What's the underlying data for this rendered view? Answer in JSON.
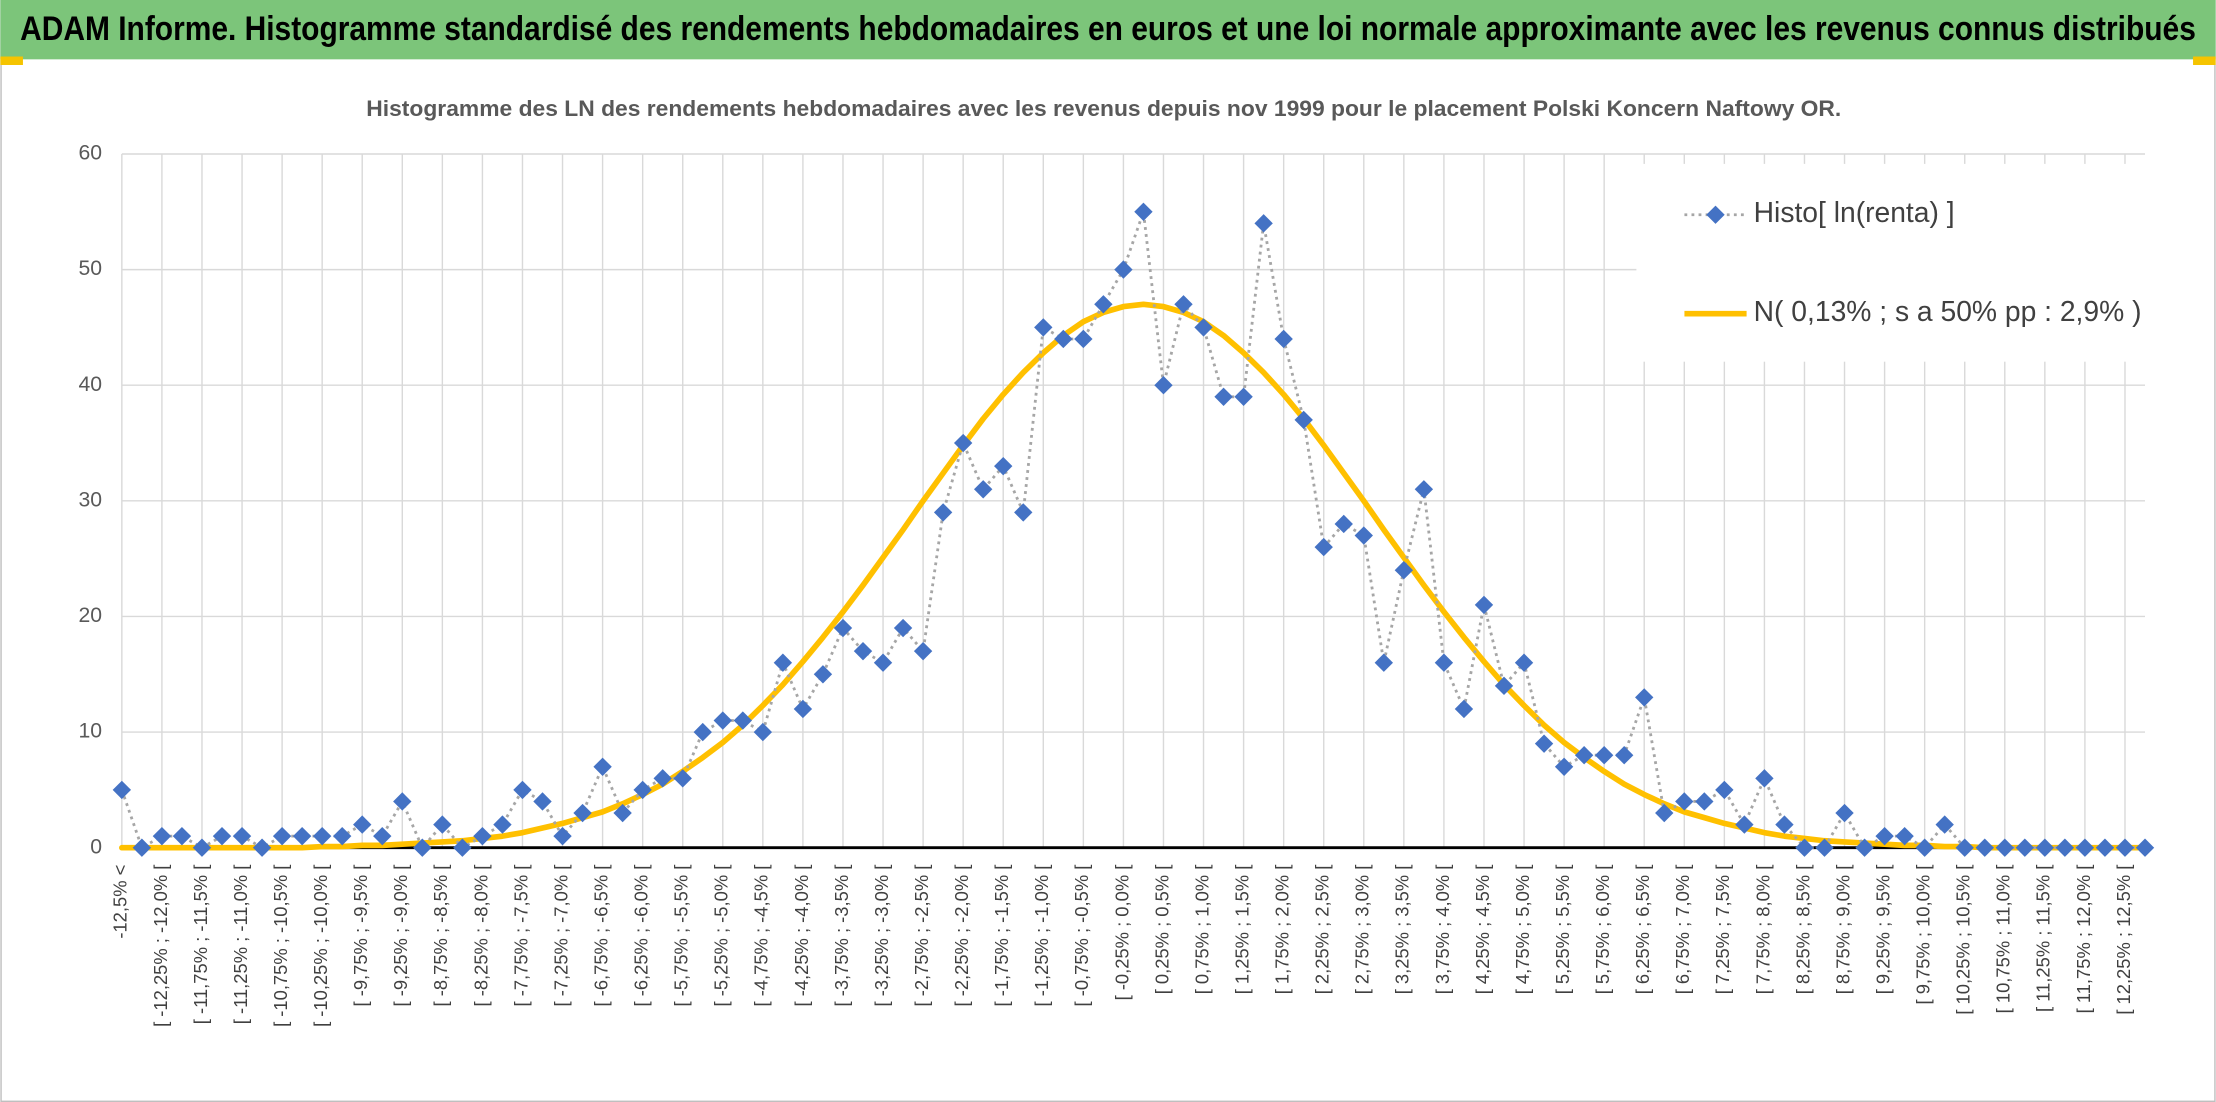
{
  "header": {
    "title": "ADAM Informe. Histogramme standardisé des rendements hebdomadaires en euros et une loi normale approximante avec les revenus connus distribués"
  },
  "chart_data": {
    "type": "line",
    "title": "Histogramme des LN des rendements hebdomadaires avec les revenus depuis nov 1999 pour le placement Polski Koncern Naftowy OR.",
    "categories": [
      "-12,5% <",
      null,
      "[ -12,25% ; -12,0% [",
      null,
      "[ -11,75% ; -11,5% [",
      null,
      "[ -11,25% ; -11,0% [",
      null,
      "[ -10,75% ; -10,5% [",
      null,
      "[ -10,25% ; -10,0% [",
      null,
      "[ -9,75% ; -9,5% [",
      null,
      "[ -9,25% ; -9,0% [",
      null,
      "[ -8,75% ; -8,5% [",
      null,
      "[ -8,25% ; -8,0% [",
      null,
      "[ -7,75% ; -7,5% [",
      null,
      "[ -7,25% ; -7,0% [",
      null,
      "[ -6,75% ; -6,5% [",
      null,
      "[ -6,25% ; -6,0% [",
      null,
      "[ -5,75% ; -5,5% [",
      null,
      "[ -5,25% ; -5,0% [",
      null,
      "[ -4,75% ; -4,5% [",
      null,
      "[ -4,25% ; -4,0% [",
      null,
      "[ -3,75% ; -3,5% [",
      null,
      "[ -3,25% ; -3,0% [",
      null,
      "[ -2,75% ; -2,5% [",
      null,
      "[ -2,25% ; -2,0% [",
      null,
      "[ -1,75% ; -1,5% [",
      null,
      "[ -1,25% ; -1,0% [",
      null,
      "[ -0,75% ; -0,5% [",
      null,
      "[ -0,25% ; 0,0% [",
      null,
      "[ 0,25% ; 0,5% [",
      null,
      "[ 0,75% ; 1,0% [",
      null,
      "[ 1,25% ; 1,5% [",
      null,
      "[ 1,75% ; 2,0% [",
      null,
      "[ 2,25% ; 2,5% [",
      null,
      "[ 2,75% ; 3,0% [",
      null,
      "[ 3,25% ; 3,5% [",
      null,
      "[ 3,75% ; 4,0% [",
      null,
      "[ 4,25% ; 4,5% [",
      null,
      "[ 4,75% ; 5,0% [",
      null,
      "[ 5,25% ; 5,5% [",
      null,
      "[ 5,75% ; 6,0% [",
      null,
      "[ 6,25% ; 6,5% [",
      null,
      "[ 6,75% ; 7,0% [",
      null,
      "[ 7,25% ; 7,5% [",
      null,
      "[ 7,75% ; 8,0% [",
      null,
      "[ 8,25% ; 8,5% [",
      null,
      "[ 8,75% ; 9,0% [",
      null,
      "[ 9,25% ; 9,5% [",
      null,
      "[ 9,75% ; 10,0% [",
      null,
      "[ 10,25% ; 10,5% [",
      null,
      "[ 10,75% ; 11,0% [",
      null,
      "[ 11,25% ; 11,5% [",
      null,
      "[ 11,75% ; 12,0% [",
      null,
      "[ 12,25% ; 12,5% [",
      null
    ],
    "series": [
      {
        "name": "Histo[ ln(renta) ]",
        "color": "#4472c4",
        "line_color": "#a6a6a6",
        "line_style": "dotted",
        "marker": "diamond",
        "values": [
          5,
          0,
          1,
          1,
          0,
          1,
          1,
          0,
          1,
          1,
          1,
          1,
          2,
          1,
          4,
          0,
          2,
          0,
          1,
          2,
          5,
          4,
          1,
          3,
          7,
          3,
          5,
          6,
          6,
          10,
          11,
          11,
          10,
          16,
          12,
          15,
          19,
          17,
          16,
          19,
          17,
          29,
          35,
          31,
          33,
          29,
          45,
          44,
          44,
          47,
          50,
          55,
          40,
          47,
          45,
          39,
          39,
          54,
          44,
          37,
          26,
          28,
          27,
          16,
          24,
          31,
          16,
          12,
          21,
          14,
          16,
          9,
          7,
          8,
          8,
          8,
          13,
          3,
          4,
          4,
          5,
          2,
          6,
          2,
          0,
          0,
          3,
          0,
          1,
          1,
          0,
          2,
          0,
          0,
          0,
          0,
          0,
          0,
          0,
          0,
          0,
          0
        ]
      },
      {
        "name": "N( 0,13% ; s a 50% pp : 2,9% )",
        "color": "#ffc000",
        "line_style": "solid",
        "values": [
          0,
          0,
          0,
          0,
          0,
          0,
          0,
          0,
          0,
          0,
          0.1,
          0.1,
          0.2,
          0.2,
          0.3,
          0.4,
          0.5,
          0.6,
          0.8,
          1.0,
          1.3,
          1.7,
          2.1,
          2.6,
          3.1,
          3.8,
          4.6,
          5.5,
          6.6,
          7.8,
          9.1,
          10.6,
          12.3,
          14.1,
          16.1,
          18.2,
          20.4,
          22.7,
          25.1,
          27.5,
          30.0,
          32.4,
          34.8,
          37.1,
          39.2,
          41.1,
          42.8,
          44.3,
          45.5,
          46.3,
          46.8,
          47,
          46.8,
          46.3,
          45.5,
          44.3,
          42.8,
          41.1,
          39.2,
          37.1,
          34.8,
          32.4,
          30.0,
          27.5,
          25.1,
          22.7,
          20.4,
          18.2,
          16.1,
          14.1,
          12.3,
          10.6,
          9.1,
          7.8,
          6.6,
          5.5,
          4.6,
          3.8,
          3.1,
          2.6,
          2.1,
          1.7,
          1.3,
          1.0,
          0.8,
          0.6,
          0.5,
          0.4,
          0.3,
          0.2,
          0.2,
          0.1,
          0.1,
          0,
          0,
          0,
          0,
          0,
          0,
          0,
          0,
          0
        ]
      }
    ],
    "ylim": [
      0,
      60
    ],
    "yticks": [
      0,
      10,
      20,
      30,
      40,
      50,
      60
    ],
    "grid": true,
    "legend": "top-right"
  }
}
